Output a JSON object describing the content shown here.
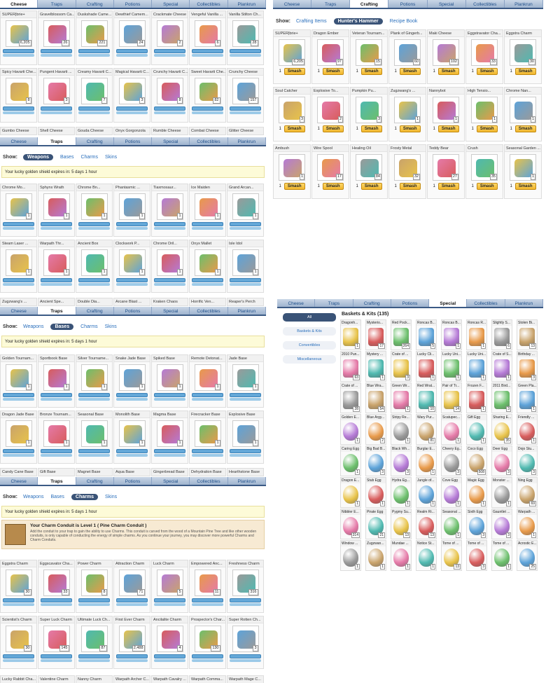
{
  "tabs_main": [
    "Cheese",
    "Traps",
    "Crafting",
    "Potions",
    "Special",
    "Collectibles",
    "Plankrun"
  ],
  "show_label": "Show:",
  "notice": "Your lucky golden shield expires in: 5 days 1 hour",
  "arm_label": "Arm",
  "smash_label": "Smash",
  "cheese_panel": {
    "active_tab": "Cheese",
    "rows": [
      [
        {
          "name": "SUPER|brie+",
          "qty": "6,205"
        },
        {
          "name": "Gravelblossom Ca...",
          "qty": "26"
        },
        {
          "name": "Duskshade Came...",
          "qty": "221"
        },
        {
          "name": "Dewthief Camem...",
          "qty": "24"
        },
        {
          "name": "Crackmate Cheese",
          "qty": "2"
        },
        {
          "name": "Vengeful Vanilla ...",
          "qty": "6"
        },
        {
          "name": "Vanilla Stilton Ch...",
          "qty": "28"
        }
      ],
      [
        {
          "name": "Spicy Havarti Che...",
          "qty": "8"
        },
        {
          "name": "Pungent Havarti ...",
          "qty": "3"
        },
        {
          "name": "Creamy Havarti C...",
          "qty": "7"
        },
        {
          "name": "Magical Havarti C...",
          "qty": "3"
        },
        {
          "name": "Crunchy Havarti C...",
          "qty": "8"
        },
        {
          "name": "Sweet Havarti Che...",
          "qty": "82"
        },
        {
          "name": "Crunchy Cheese",
          "qty": "157"
        }
      ]
    ],
    "footer": [
      "Gumbo Cheese",
      "Shell Cheese",
      "Gouda Cheese",
      "Onyx Gorgonzola",
      "Rumble Cheese",
      "Combat Cheese",
      "Glitter Cheese"
    ]
  },
  "crafting_panel": {
    "active_tab": "Crafting",
    "options": [
      "Crafting Items",
      "Hunter's Hammer",
      "Recipe Book"
    ],
    "active_option": "Hunter's Hammer",
    "rows": [
      [
        {
          "name": "SUPER|brie+",
          "qty": "6,205"
        },
        {
          "name": "Dragon Ember",
          "qty": "97"
        },
        {
          "name": "Veteran Tournam...",
          "qty": "15"
        },
        {
          "name": "Plank of Gingerb...",
          "qty": "60"
        },
        {
          "name": "Maki Cheese",
          "qty": "102"
        },
        {
          "name": "Eggstravator Cha...",
          "qty": "33"
        },
        {
          "name": "Eggstra Charm",
          "qty": "30"
        }
      ],
      [
        {
          "name": "Soul Catcher",
          "qty": "3"
        },
        {
          "name": "Explosive To...",
          "qty": "2"
        },
        {
          "name": "Pumpkin Pu...",
          "qty": "3"
        },
        {
          "name": "Zugzwang's ...",
          "qty": "1"
        },
        {
          "name": "Nannybot",
          "qty": "1"
        },
        {
          "name": "High Tensio...",
          "qty": "1"
        },
        {
          "name": "Chrome Nan...",
          "qty": "1"
        }
      ],
      [
        {
          "name": "Ambush",
          "qty": "1"
        },
        {
          "name": "Wire Spool",
          "qty": "17"
        },
        {
          "name": "Healing Oil",
          "qty": "84"
        },
        {
          "name": "Frosty Metal",
          "qty": "32"
        },
        {
          "name": "Teddy Bear",
          "qty": "27"
        },
        {
          "name": "Crush",
          "qty": "35"
        },
        {
          "name": "Seasonal Garden ...",
          "qty": "1"
        }
      ]
    ],
    "qty_default": "1"
  },
  "weapons_panel": {
    "active_tab": "Traps",
    "options": [
      "Weapons",
      "Bases",
      "Charms",
      "Skins"
    ],
    "active_option": "Weapons",
    "rows": [
      [
        {
          "name": "Chrome Mo...",
          "qty": "1"
        },
        {
          "name": "Sphynx Wrath",
          "qty": "1"
        },
        {
          "name": "Chrome Bn...",
          "qty": "1"
        },
        {
          "name": "Phantasmic ...",
          "qty": "1"
        },
        {
          "name": "Tiaxmosaur...",
          "qty": "1"
        },
        {
          "name": "Ice Maiden",
          "qty": "1"
        },
        {
          "name": "Grand Arcan...",
          "qty": "1"
        }
      ],
      [
        {
          "name": "Steam Laser ...",
          "qty": "1"
        },
        {
          "name": "Warpath Thr...",
          "qty": "1"
        },
        {
          "name": "Ancient Box",
          "qty": "1"
        },
        {
          "name": "Clockwork P...",
          "qty": "1"
        },
        {
          "name": "Chrome Dril...",
          "qty": "1"
        },
        {
          "name": "Onyx Mallet",
          "qty": "1"
        },
        {
          "name": "Isle Idol",
          "qty": "1"
        }
      ]
    ],
    "footer": [
      "Zugzwang's ...",
      "Ancient Spe...",
      "Double Dia...",
      "Arcane Blast ...",
      "Kraken Chaos",
      "Horrific Ven...",
      "Reaper's Perch"
    ]
  },
  "bases_panel": {
    "active_tab": "Traps",
    "active_option": "Bases",
    "rows": [
      [
        {
          "name": "Golden Tournam...",
          "qty": "1"
        },
        {
          "name": "Sportbook Base",
          "qty": "1"
        },
        {
          "name": "Silver Tourname...",
          "qty": "1"
        },
        {
          "name": "Snake Jade Base",
          "qty": "1"
        },
        {
          "name": "Spiked Base",
          "qty": "1"
        },
        {
          "name": "Remote Detonat...",
          "qty": "1"
        },
        {
          "name": "Jade Base",
          "qty": "1"
        }
      ],
      [
        {
          "name": "Dragon Jade Base",
          "qty": "1"
        },
        {
          "name": "Bronze Tournam...",
          "qty": "1"
        },
        {
          "name": "Seasonal Base",
          "qty": "1"
        },
        {
          "name": "Monolith Base",
          "qty": "1"
        },
        {
          "name": "Magma Base",
          "qty": "1"
        },
        {
          "name": "Firecracker Base",
          "qty": "1"
        },
        {
          "name": "Explosive Base",
          "qty": "1"
        }
      ]
    ],
    "footer": [
      "Candy Cane Base",
      "Gift Base",
      "Magnet Base",
      "Aqua Base",
      "Gingerbread Base",
      "Dehydration Base",
      "Hearthstone Base"
    ]
  },
  "charms_panel": {
    "active_tab": "Traps",
    "active_option": "Charms",
    "conduit_title": "Your Charm Conduit is Level 1 ( Pine Charm Conduit )",
    "conduit_text": "Add the conduit to your trap to gain the ability to use Charms. This conduit is carved from the wood of a Mountain Pine Tree and like other wooden conduits, is only capable of conducting the energy of simple charms. As you continue your journey, you may discover more powerful Charms and Charm Conduits.",
    "rows": [
      [
        {
          "name": "Eggstra Charm",
          "qty": "30"
        },
        {
          "name": "Eggscavator Cha...",
          "qty": "33"
        },
        {
          "name": "Power Charm",
          "qty": "8"
        },
        {
          "name": "Attraction Charm",
          "qty": "71"
        },
        {
          "name": "Luck Charm",
          "qty": "5"
        },
        {
          "name": "Empowered Anc...",
          "qty": "11"
        },
        {
          "name": "Freshness Charm",
          "qty": "316"
        }
      ],
      [
        {
          "name": "Scientist's Charm",
          "qty": "30"
        },
        {
          "name": "Super Luck Charm",
          "qty": "145"
        },
        {
          "name": "Ultimate Luck Ch...",
          "qty": "87"
        },
        {
          "name": "First Ever Charm",
          "qty": "2,488"
        },
        {
          "name": "Ancilalite Charm",
          "qty": "4"
        },
        {
          "name": "Prospector's Char...",
          "qty": "130"
        },
        {
          "name": "Super Rotten Ch...",
          "qty": "3"
        }
      ]
    ],
    "footer": [
      "Lucky Rabbit Cha...",
      "Valentine Charm",
      "Nanny Charm",
      "Warpath Archer C...",
      "Warpath Cavalry ...",
      "Warpath Comma...",
      "Warpath Mage C..."
    ]
  },
  "special_panel": {
    "active_tab": "Special",
    "sidebar": [
      "All",
      "Baskets & Kits",
      "Convertibles",
      "Miscellaneous"
    ],
    "active_sidebar": "All",
    "title": "Baskets & Kits (135)",
    "rows": [
      [
        "Dragonh...",
        "Mysterio...",
        "Red Pock...",
        "Roncas B...",
        "Roncas B...",
        "Roncas R...",
        "Slightly S...",
        "Stolen Bi..."
      ],
      [
        "2010 Pun...",
        "Mystery ...",
        "Crate of ...",
        "Lucky Cli...",
        "Lucky Uni...",
        "Lucky Uni...",
        "Crate of S...",
        "Birthday ..."
      ],
      [
        "Crate of ...",
        "Blue Wra...",
        "Green Wr...",
        "Red Wrat...",
        "Pair of Tr...",
        "Frozen F...",
        "2011 Bird...",
        "Green Pla..."
      ],
      [
        "Golden E...",
        "Blue Argy...",
        "Stripy Re...",
        "Wary Pur...",
        "Scatupec...",
        "Gift Egg",
        "Sharing E...",
        "Friendly ..."
      ],
      [
        "Caring Egg",
        "Big Bad B...",
        "Black Wh...",
        "Burglar E...",
        "Cheery Eg...",
        "Coco Egg",
        "Deer Egg",
        "Dojo Stu..."
      ],
      [
        "Dragon E...",
        "Stub Egg",
        "Hydra Eg...",
        "Jungle of...",
        "Cove Egg",
        "Magic Egg",
        "Monster ...",
        "Ning Egg"
      ],
      [
        "Nibbler E...",
        "Pirate Egg",
        "Pygmy Su...",
        "Realm Ri...",
        "Seasonal ...",
        "Sixth Egg",
        "Gauntlet ...",
        "Warpath ..."
      ],
      [
        "Window ...",
        "Zugzwan...",
        "Mundae ...",
        "Notice St...",
        "Tome of ...",
        "Tome of ...",
        "Tome of ...",
        "Acrostic E..."
      ]
    ],
    "counts": [
      [
        "1",
        "17",
        "264",
        "5",
        "1",
        "1",
        "6",
        "13"
      ],
      [
        "63",
        "1",
        "3",
        "1",
        "1",
        "1",
        "1",
        "3"
      ],
      [
        "28",
        "54",
        "1",
        "10",
        "14",
        "1",
        "3",
        "1"
      ],
      [
        "1",
        "2",
        "1",
        "81",
        "1",
        "1",
        "35",
        "1"
      ],
      [
        "1",
        "3",
        "3",
        "1",
        "3",
        "508",
        "3",
        "3"
      ],
      [
        "1",
        "1",
        "1",
        "1",
        "1",
        "1",
        "1",
        "69"
      ],
      [
        "314",
        "21",
        "13",
        "13",
        "1",
        "3",
        "3",
        "1"
      ],
      [
        "1",
        "1",
        "1",
        "1",
        "13",
        "3",
        "1",
        "25"
      ]
    ]
  },
  "colors": {
    "tab_bar": "#9fb4cf",
    "active_pill": "#3a5377",
    "arm_button": "#64a8d8",
    "smash_button": "#f0b62c"
  }
}
